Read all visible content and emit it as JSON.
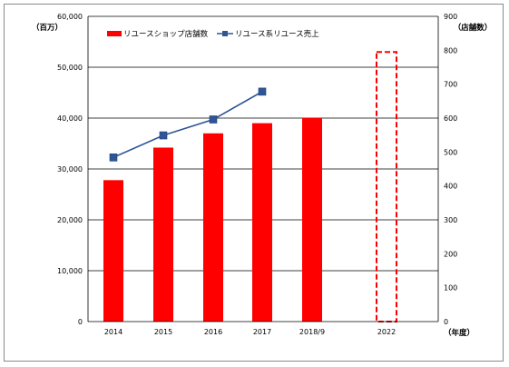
{
  "chart_data": {
    "type": "bar",
    "categories": [
      "2014",
      "2015",
      "2016",
      "2017",
      "2018/9",
      "2022"
    ],
    "series": [
      {
        "name": "リユースショップ店舗数",
        "type": "bar",
        "axis": "left",
        "color": "#ff0000",
        "values": [
          27800,
          34200,
          37000,
          39000,
          40000,
          53000
        ],
        "dashed_outline_index": 5
      },
      {
        "name": "リユース系リユース売上",
        "type": "line",
        "axis": "right",
        "color": "#2f5597",
        "marker_color": "#2f5597",
        "values": [
          484,
          549,
          596,
          678,
          null,
          null
        ]
      }
    ],
    "left_axis": {
      "label": "（百万）",
      "ylim": [
        0,
        60000
      ],
      "ticks": [
        "0",
        "10,000",
        "20,000",
        "30,000",
        "40,000",
        "50,000",
        "60,000"
      ]
    },
    "right_axis": {
      "label": "（店舗数）",
      "ylim": [
        0,
        900
      ],
      "ticks": [
        "0",
        "100",
        "200",
        "300",
        "400",
        "500",
        "600",
        "700",
        "800",
        "900"
      ]
    },
    "x_unit": "（年度）",
    "grid": true,
    "legend_position": "top-left"
  }
}
